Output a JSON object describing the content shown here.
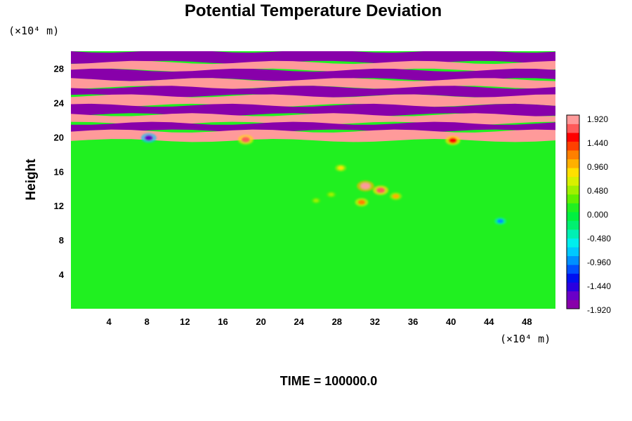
{
  "chart_data": {
    "type": "heatmap",
    "title": "Potential Temperature Deviation",
    "xlabel": "",
    "ylabel": "Height",
    "x_unit": "(×10⁴ m)",
    "y_unit": "(×10⁴ m)",
    "xlim": [
      0,
      51
    ],
    "ylim": [
      0,
      30
    ],
    "xticks": [
      4,
      8,
      12,
      16,
      20,
      24,
      28,
      32,
      36,
      40,
      44,
      48
    ],
    "yticks": [
      4,
      8,
      12,
      16,
      20,
      24,
      28
    ],
    "colorbar": {
      "range": [
        -1.92,
        1.92
      ],
      "labels": [
        "1.920",
        "1.440",
        "0.960",
        "0.480",
        "0.000",
        "-0.480",
        "-0.960",
        "-1.440",
        "-1.920"
      ],
      "colors": [
        "#8800aa",
        "#6a00c8",
        "#2a00e0",
        "#0010f0",
        "#0050ff",
        "#0090ff",
        "#00c8ff",
        "#00eeee",
        "#00f0b4",
        "#00f070",
        "#00f040",
        "#20f020",
        "#60f000",
        "#a0f000",
        "#d8f000",
        "#ffe000",
        "#ffb000",
        "#ff8000",
        "#ff4000",
        "#ff0000",
        "#ff5a5a",
        "#ff9a9a"
      ]
    },
    "background_value": 0.05,
    "upper_layer": {
      "base_height": 19.6,
      "positive_value": 1.92,
      "negative_value": -1.92,
      "stripe_bands": [
        [
          28.7,
          30.0,
          -1.92
        ],
        [
          27.8,
          28.7,
          1.92
        ],
        [
          26.7,
          27.8,
          -1.92
        ],
        [
          25.8,
          26.7,
          1.92
        ],
        [
          24.8,
          25.8,
          -1.92
        ],
        [
          23.7,
          24.8,
          1.92
        ],
        [
          22.6,
          23.7,
          -1.92
        ],
        [
          21.6,
          22.6,
          1.92
        ],
        [
          20.7,
          21.6,
          -1.92
        ],
        [
          19.6,
          20.7,
          1.92
        ]
      ]
    },
    "anomalies": [
      {
        "x": 31.0,
        "y": 14.3,
        "value": 1.9
      },
      {
        "x": 32.6,
        "y": 13.8,
        "value": 1.6
      },
      {
        "x": 30.6,
        "y": 12.4,
        "value": 1.2
      },
      {
        "x": 34.2,
        "y": 13.1,
        "value": 1.0
      },
      {
        "x": 28.4,
        "y": 16.4,
        "value": 0.8
      },
      {
        "x": 27.4,
        "y": 13.3,
        "value": 0.5
      },
      {
        "x": 25.8,
        "y": 12.6,
        "value": 0.4
      },
      {
        "x": 45.2,
        "y": 10.2,
        "value": -0.9
      },
      {
        "x": 18.4,
        "y": 19.7,
        "value": 1.6
      },
      {
        "x": 40.2,
        "y": 19.6,
        "value": 1.5
      },
      {
        "x": 8.2,
        "y": 19.9,
        "value": -1.6
      }
    ]
  },
  "footer": {
    "time_label": "TIME = 100000.0"
  }
}
